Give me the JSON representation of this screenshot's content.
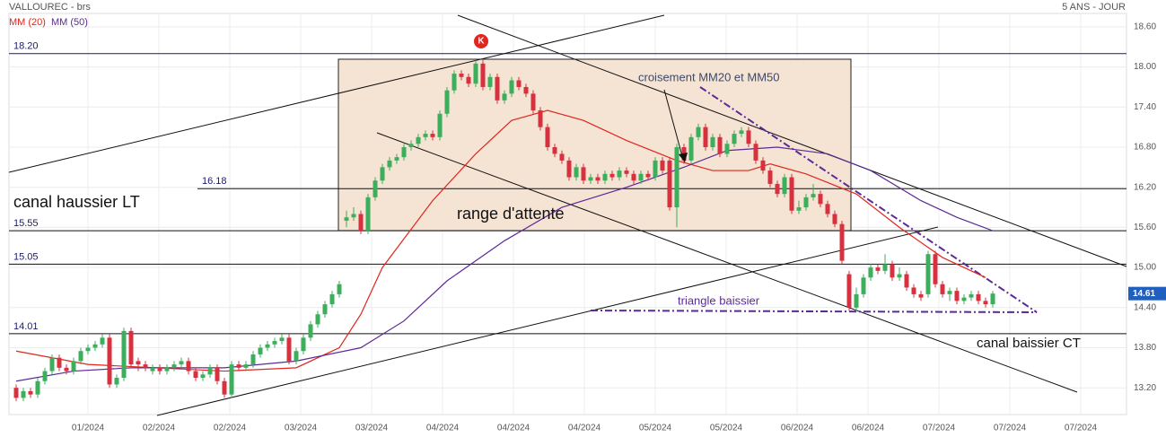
{
  "chart_data": {
    "type": "candlestick",
    "title": "VALLOUREC - brs",
    "period": "5 ANS - JOUR",
    "up_color": "#3cae5c",
    "down_color": "#d7303f",
    "candles": [
      [
        13.2,
        13.25,
        13.0,
        13.05
      ],
      [
        13.05,
        13.2,
        13.0,
        13.15
      ],
      [
        13.15,
        13.2,
        13.05,
        13.1
      ],
      [
        13.1,
        13.35,
        13.05,
        13.3
      ],
      [
        13.3,
        13.5,
        13.25,
        13.45
      ],
      [
        13.45,
        13.7,
        13.4,
        13.65
      ],
      [
        13.65,
        13.7,
        13.45,
        13.5
      ],
      [
        13.5,
        13.55,
        13.4,
        13.45
      ],
      [
        13.45,
        13.65,
        13.4,
        13.6
      ],
      [
        13.6,
        13.8,
        13.55,
        13.75
      ],
      [
        13.75,
        13.85,
        13.7,
        13.8
      ],
      [
        13.8,
        13.9,
        13.75,
        13.85
      ],
      [
        13.85,
        14.0,
        13.8,
        13.95
      ],
      [
        13.95,
        14.0,
        13.2,
        13.25
      ],
      [
        13.25,
        13.4,
        13.2,
        13.35
      ],
      [
        13.35,
        14.1,
        13.3,
        14.05
      ],
      [
        14.05,
        14.1,
        13.5,
        13.55
      ],
      [
        13.6,
        13.65,
        13.45,
        13.55
      ],
      [
        13.55,
        13.6,
        13.45,
        13.5
      ],
      [
        13.45,
        13.55,
        13.4,
        13.5
      ],
      [
        13.5,
        13.55,
        13.4,
        13.45
      ],
      [
        13.45,
        13.55,
        13.4,
        13.5
      ],
      [
        13.5,
        13.6,
        13.45,
        13.55
      ],
      [
        13.55,
        13.65,
        13.5,
        13.6
      ],
      [
        13.6,
        13.65,
        13.4,
        13.45
      ],
      [
        13.45,
        13.5,
        13.3,
        13.35
      ],
      [
        13.35,
        13.45,
        13.3,
        13.4
      ],
      [
        13.4,
        13.55,
        13.35,
        13.5
      ],
      [
        13.5,
        13.55,
        13.25,
        13.3
      ],
      [
        13.3,
        13.35,
        13.05,
        13.1
      ],
      [
        13.1,
        13.6,
        13.05,
        13.55
      ],
      [
        13.55,
        13.6,
        13.45,
        13.5
      ],
      [
        13.5,
        13.6,
        13.45,
        13.55
      ],
      [
        13.55,
        13.75,
        13.5,
        13.7
      ],
      [
        13.7,
        13.85,
        13.65,
        13.8
      ],
      [
        13.8,
        13.9,
        13.75,
        13.85
      ],
      [
        13.85,
        13.95,
        13.8,
        13.9
      ],
      [
        13.9,
        14.0,
        13.85,
        13.95
      ],
      [
        13.95,
        14.0,
        13.55,
        13.6
      ],
      [
        13.6,
        13.8,
        13.55,
        13.75
      ],
      [
        13.75,
        14.0,
        13.7,
        13.95
      ],
      [
        13.95,
        14.2,
        13.9,
        14.15
      ],
      [
        14.15,
        14.35,
        14.1,
        14.3
      ],
      [
        14.3,
        14.5,
        14.25,
        14.45
      ],
      [
        14.45,
        14.65,
        14.4,
        14.6
      ],
      [
        14.6,
        14.8,
        14.55,
        14.75
      ],
      [
        15.7,
        15.85,
        15.6,
        15.75
      ],
      [
        15.75,
        15.9,
        15.7,
        15.8
      ],
      [
        15.8,
        15.85,
        15.5,
        15.55
      ],
      [
        15.55,
        16.1,
        15.5,
        16.05
      ],
      [
        16.05,
        16.35,
        16.0,
        16.3
      ],
      [
        16.3,
        16.55,
        16.25,
        16.5
      ],
      [
        16.5,
        16.65,
        16.45,
        16.6
      ],
      [
        16.6,
        16.7,
        16.55,
        16.65
      ],
      [
        16.65,
        16.85,
        16.6,
        16.8
      ],
      [
        16.8,
        16.9,
        16.75,
        16.85
      ],
      [
        16.85,
        17.0,
        16.8,
        16.95
      ],
      [
        16.95,
        17.05,
        16.9,
        17.0
      ],
      [
        17.0,
        17.05,
        16.9,
        16.95
      ],
      [
        16.95,
        17.35,
        16.9,
        17.3
      ],
      [
        17.3,
        17.7,
        17.25,
        17.65
      ],
      [
        17.65,
        17.95,
        17.6,
        17.9
      ],
      [
        17.9,
        17.95,
        17.8,
        17.85
      ],
      [
        17.85,
        17.9,
        17.7,
        17.75
      ],
      [
        17.75,
        18.1,
        17.7,
        18.05
      ],
      [
        18.05,
        18.1,
        17.65,
        17.7
      ],
      [
        17.7,
        17.9,
        17.65,
        17.85
      ],
      [
        17.85,
        17.9,
        17.45,
        17.5
      ],
      [
        17.5,
        17.65,
        17.45,
        17.6
      ],
      [
        17.6,
        17.85,
        17.55,
        17.8
      ],
      [
        17.8,
        17.85,
        17.65,
        17.7
      ],
      [
        17.7,
        17.75,
        17.55,
        17.6
      ],
      [
        17.6,
        17.65,
        17.3,
        17.35
      ],
      [
        17.35,
        17.4,
        17.05,
        17.1
      ],
      [
        17.1,
        17.15,
        16.75,
        16.8
      ],
      [
        16.8,
        16.85,
        16.65,
        16.7
      ],
      [
        16.7,
        16.75,
        16.55,
        16.6
      ],
      [
        16.6,
        16.65,
        16.3,
        16.35
      ],
      [
        16.35,
        16.55,
        16.3,
        16.5
      ],
      [
        16.5,
        16.55,
        16.25,
        16.3
      ],
      [
        16.3,
        16.4,
        16.25,
        16.35
      ],
      [
        16.35,
        16.4,
        16.25,
        16.3
      ],
      [
        16.3,
        16.45,
        16.25,
        16.4
      ],
      [
        16.4,
        16.45,
        16.3,
        16.35
      ],
      [
        16.35,
        16.5,
        16.3,
        16.45
      ],
      [
        16.45,
        16.5,
        16.35,
        16.4
      ],
      [
        16.4,
        16.45,
        16.25,
        16.3
      ],
      [
        16.3,
        16.45,
        16.25,
        16.4
      ],
      [
        16.4,
        16.45,
        16.3,
        16.35
      ],
      [
        16.35,
        16.65,
        16.3,
        16.6
      ],
      [
        16.6,
        16.65,
        16.4,
        16.45
      ],
      [
        16.6,
        16.65,
        15.85,
        15.9
      ],
      [
        15.9,
        16.85,
        15.6,
        16.8
      ],
      [
        16.8,
        16.85,
        16.55,
        16.6
      ],
      [
        16.6,
        17.0,
        16.55,
        16.95
      ],
      [
        16.95,
        17.15,
        16.9,
        17.1
      ],
      [
        17.1,
        17.15,
        16.75,
        16.8
      ],
      [
        16.8,
        17.0,
        16.75,
        16.95
      ],
      [
        16.95,
        17.0,
        16.65,
        16.7
      ],
      [
        16.7,
        16.9,
        16.65,
        16.85
      ],
      [
        16.85,
        17.05,
        16.8,
        17.0
      ],
      [
        17.0,
        17.1,
        16.95,
        17.05
      ],
      [
        17.05,
        17.1,
        16.8,
        16.85
      ],
      [
        16.85,
        16.9,
        16.55,
        16.6
      ],
      [
        16.6,
        16.65,
        16.4,
        16.45
      ],
      [
        16.45,
        16.5,
        16.2,
        16.25
      ],
      [
        16.25,
        16.3,
        16.05,
        16.1
      ],
      [
        16.1,
        16.4,
        16.05,
        16.35
      ],
      [
        16.35,
        16.4,
        15.8,
        15.85
      ],
      [
        15.85,
        16.0,
        15.8,
        15.9
      ],
      [
        15.9,
        16.1,
        15.85,
        16.05
      ],
      [
        16.05,
        16.25,
        16.0,
        16.1
      ],
      [
        16.1,
        16.15,
        15.9,
        15.95
      ],
      [
        15.95,
        16.0,
        15.75,
        15.8
      ],
      [
        15.8,
        15.85,
        15.6,
        15.65
      ],
      [
        15.65,
        15.7,
        15.05,
        15.1
      ],
      [
        14.9,
        14.95,
        14.35,
        14.4
      ],
      [
        14.4,
        14.7,
        14.35,
        14.6
      ],
      [
        14.6,
        14.9,
        14.55,
        14.85
      ],
      [
        14.85,
        15.05,
        14.8,
        15.0
      ],
      [
        15.0,
        15.05,
        14.9,
        14.95
      ],
      [
        14.95,
        15.2,
        14.9,
        15.05
      ],
      [
        15.05,
        15.1,
        14.8,
        14.85
      ],
      [
        14.85,
        15.0,
        14.8,
        14.9
      ],
      [
        14.9,
        14.95,
        14.65,
        14.7
      ],
      [
        14.7,
        14.75,
        14.55,
        14.6
      ],
      [
        14.6,
        14.65,
        14.5,
        14.55
      ],
      [
        14.6,
        15.25,
        14.55,
        15.2
      ],
      [
        15.2,
        15.25,
        14.7,
        14.75
      ],
      [
        14.75,
        14.8,
        14.55,
        14.6
      ],
      [
        14.6,
        14.7,
        14.5,
        14.65
      ],
      [
        14.65,
        14.7,
        14.45,
        14.5
      ],
      [
        14.5,
        14.6,
        14.45,
        14.55
      ],
      [
        14.55,
        14.65,
        14.5,
        14.6
      ],
      [
        14.6,
        14.65,
        14.45,
        14.5
      ],
      [
        14.5,
        14.55,
        14.4,
        14.45
      ],
      [
        14.45,
        14.65,
        14.4,
        14.61
      ]
    ],
    "series": [
      {
        "name": "MM (20)",
        "color": "#e0261e",
        "x": [
          0,
          10,
          29,
          39,
          45,
          48,
          51,
          58,
          64,
          69,
          74,
          79,
          85,
          92,
          97,
          102,
          105,
          110,
          117,
          123,
          129,
          135
        ],
        "values": [
          13.75,
          13.55,
          13.45,
          13.5,
          13.8,
          14.3,
          15.0,
          16.0,
          16.7,
          17.2,
          17.35,
          17.2,
          16.9,
          16.6,
          16.45,
          16.45,
          16.55,
          16.4,
          16.1,
          15.6,
          15.15,
          14.85
        ]
      },
      {
        "name": "MM (50)",
        "color": "#5b2a96",
        "x": [
          0,
          8,
          16,
          29,
          39,
          48,
          54,
          60,
          68,
          76,
          85,
          93,
          99,
          106,
          113,
          119,
          126,
          131,
          136
        ],
        "values": [
          13.3,
          13.45,
          13.5,
          13.5,
          13.6,
          13.8,
          14.2,
          14.8,
          15.4,
          15.9,
          16.2,
          16.5,
          16.75,
          16.8,
          16.7,
          16.45,
          16.0,
          15.75,
          15.55
        ]
      }
    ],
    "ylim": [
      12.8,
      18.8
    ],
    "yticks": [
      {
        "value": 13.2,
        "label": "13.20"
      },
      {
        "value": 13.8,
        "label": "13.80"
      },
      {
        "value": 14.4,
        "label": "14.40"
      },
      {
        "value": 15.0,
        "label": "15.00"
      },
      {
        "value": 15.6,
        "label": "15.60"
      },
      {
        "value": 16.2,
        "label": "16.20"
      },
      {
        "value": 16.8,
        "label": "16.80"
      },
      {
        "value": 17.4,
        "label": "17.40"
      },
      {
        "value": 18.0,
        "label": "18.00"
      },
      {
        "value": 18.6,
        "label": "18.60"
      }
    ],
    "x_labels": [
      "01/2024",
      "02/2024",
      "02/2024",
      "03/2024",
      "03/2024",
      "04/2024",
      "04/2024",
      "04/2024",
      "05/2024",
      "05/2024",
      "06/2024",
      "06/2024",
      "07/2024",
      "07/2024",
      "07/2024"
    ],
    "levels": [
      {
        "value": 18.2,
        "label": "18.20"
      },
      16.18,
      15.55,
      15.05,
      14.01
    ],
    "last_price": 14.61,
    "marker": "K",
    "annotations": [
      "canal haussier LT",
      "range d'attente",
      "croisement MM20 et MM50",
      "triangle baissier",
      "canal baissier CT"
    ],
    "grid": true
  }
}
